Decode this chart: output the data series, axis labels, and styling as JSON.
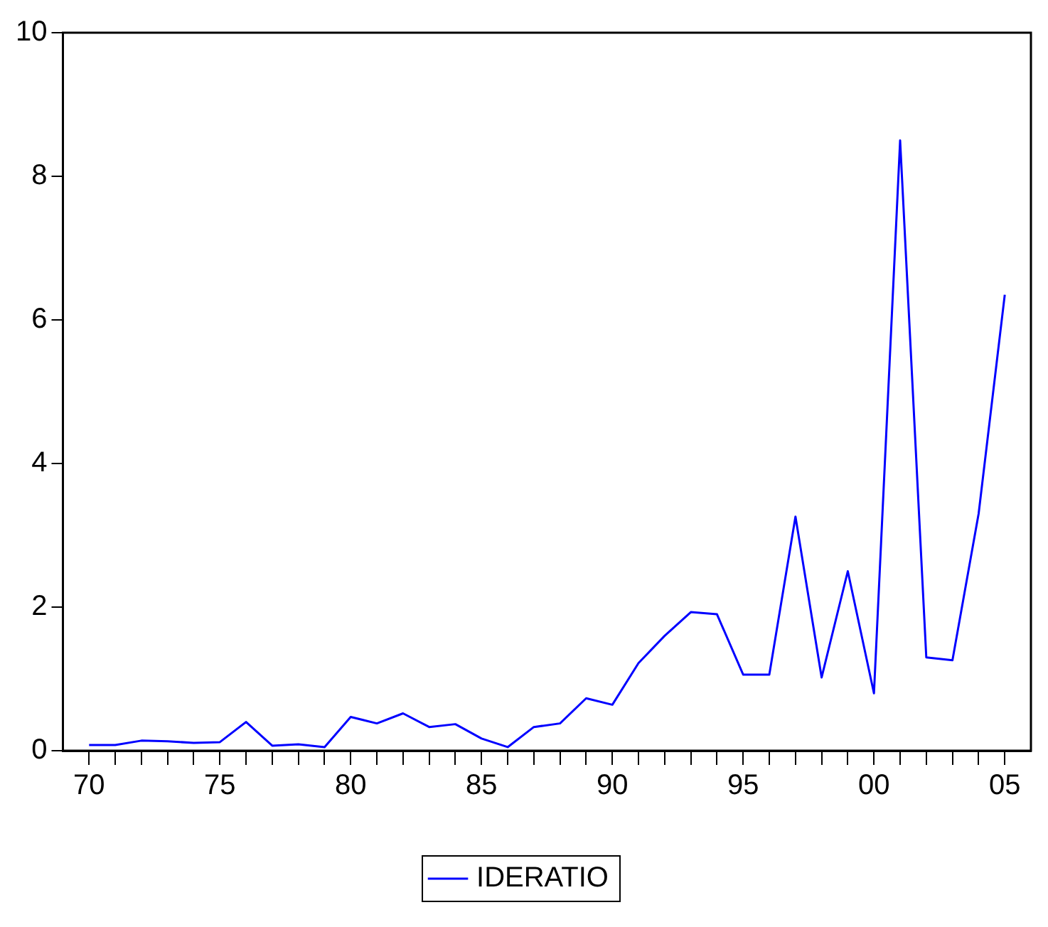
{
  "chart_data": {
    "type": "line",
    "categories": [
      "70",
      null,
      null,
      null,
      null,
      "75",
      null,
      null,
      null,
      null,
      "80",
      null,
      null,
      null,
      null,
      "85",
      null,
      null,
      null,
      null,
      "90",
      null,
      null,
      null,
      null,
      "95",
      null,
      null,
      null,
      null,
      "00",
      null,
      null,
      null,
      null,
      "05"
    ],
    "series": [
      {
        "name": "IDERATIO",
        "color": "#0000ff",
        "values": [
          0.08,
          0.08,
          0.14,
          0.13,
          0.11,
          0.12,
          0.4,
          0.07,
          0.09,
          0.05,
          0.47,
          0.38,
          0.52,
          0.33,
          0.37,
          0.17,
          0.05,
          0.33,
          0.38,
          0.73,
          0.64,
          1.22,
          1.6,
          1.93,
          1.9,
          1.06,
          1.06,
          3.26,
          1.02,
          2.5,
          0.8,
          8.5,
          1.3,
          1.26,
          3.3,
          6.35
        ]
      }
    ],
    "ylim": [
      0,
      10
    ],
    "yticks": [
      0,
      2,
      4,
      6,
      8,
      10
    ],
    "grid": false,
    "legend": "bottom",
    "marker": "none",
    "line_style": "solid"
  }
}
